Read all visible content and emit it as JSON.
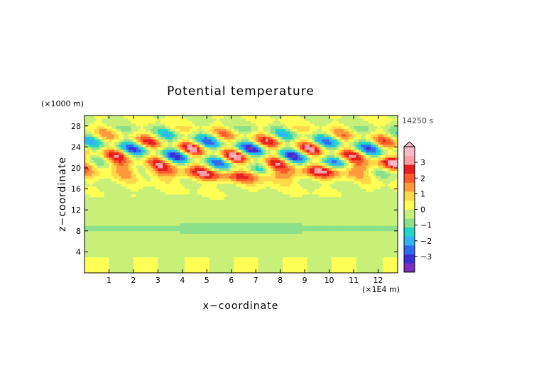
{
  "chart_data": {
    "type": "heatmap",
    "title": "Potential temperature",
    "xlabel": "x−coordinate",
    "ylabel": "z−coordinate",
    "x_unit": "(×1E4 m)",
    "y_unit": "(×1000 m)",
    "time_label": "14250 s",
    "xlim": [
      0,
      12.8
    ],
    "ylim": [
      0,
      30
    ],
    "x_ticks": [
      "1",
      "2",
      "3",
      "4",
      "5",
      "6",
      "7",
      "8",
      "9",
      "10",
      "11",
      "12"
    ],
    "y_ticks": [
      "4",
      "8",
      "12",
      "16",
      "20",
      "24",
      "28"
    ],
    "colorbar": {
      "ticks": [
        "3",
        "2",
        "1",
        "0",
        "−1",
        "−2",
        "−3"
      ],
      "range": [
        -4,
        4
      ],
      "extend_top": true,
      "colors": [
        "#7b2fbf",
        "#3c2fd6",
        "#2f6cf0",
        "#2fb4f5",
        "#1fd6c8",
        "#8ce08a",
        "#c8f078",
        "#ffff55",
        "#ffd84a",
        "#ff9a3a",
        "#ff5a2a",
        "#e61e1e",
        "#ff9fa8",
        "#ffb8c8"
      ]
    },
    "field_description_values": {
      "background_near_surface": 0,
      "mid_level_band_z_8_10km": -0.8,
      "upper_wave_amplitude_max": 3.5,
      "upper_wave_amplitude_min": -3.0
    }
  }
}
